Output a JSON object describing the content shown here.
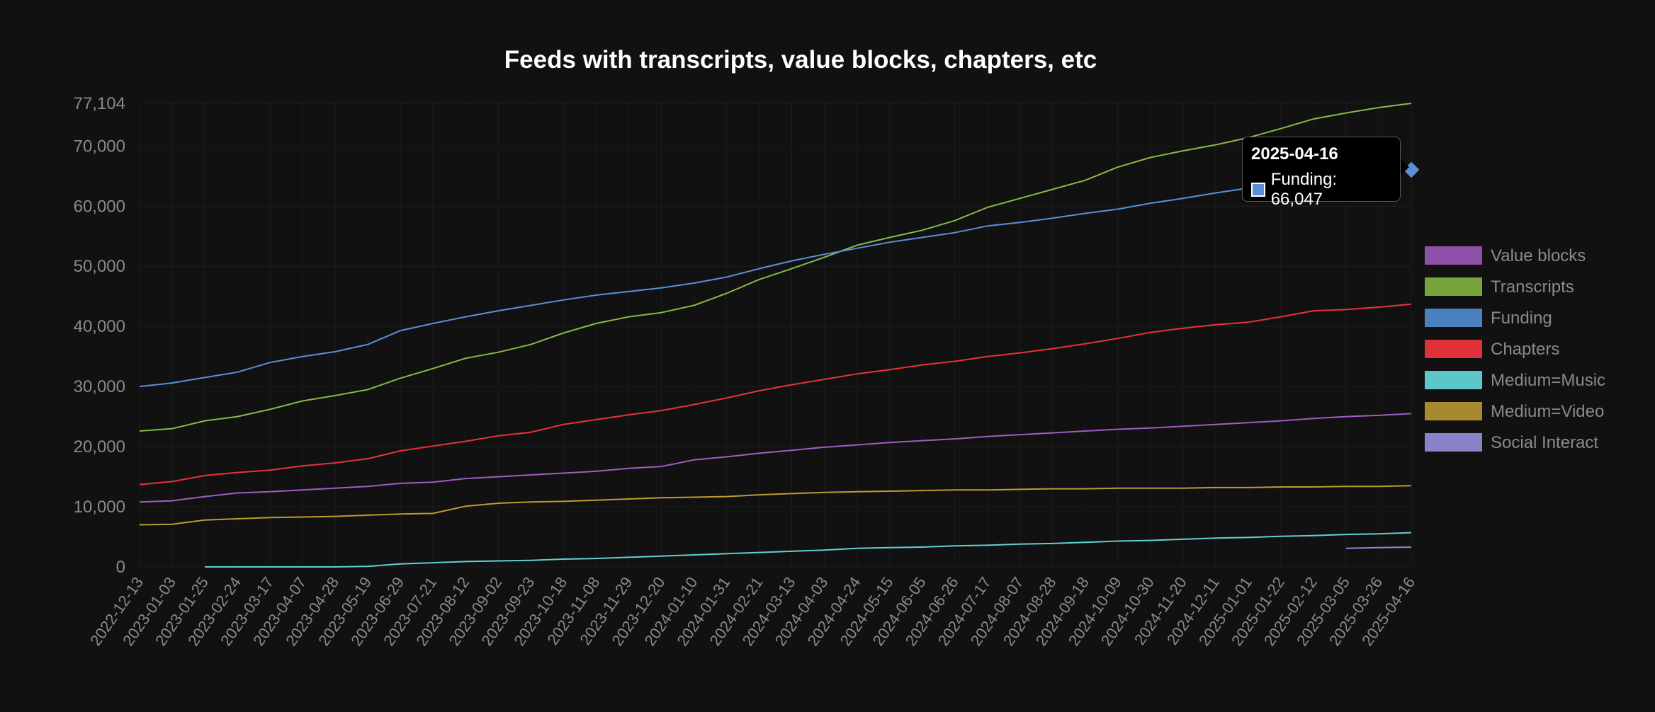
{
  "chart_data": {
    "type": "line",
    "title": "Feeds with transcripts, value blocks, chapters, etc",
    "xlabel": "",
    "ylabel": "",
    "ylim": [
      0,
      77104
    ],
    "y_ticks": [
      "0",
      "10,000",
      "20,000",
      "30,000",
      "40,000",
      "50,000",
      "60,000",
      "70,000",
      "77,104"
    ],
    "y_tick_values": [
      0,
      10000,
      20000,
      30000,
      40000,
      50000,
      60000,
      70000,
      77104
    ],
    "x": [
      "2022-12-13",
      "2023-01-03",
      "2023-01-25",
      "2023-02-24",
      "2023-03-17",
      "2023-04-07",
      "2023-04-28",
      "2023-05-19",
      "2023-06-29",
      "2023-07-21",
      "2023-08-12",
      "2023-09-02",
      "2023-09-23",
      "2023-10-18",
      "2023-11-08",
      "2023-11-29",
      "2023-12-20",
      "2024-01-10",
      "2024-01-31",
      "2024-02-21",
      "2024-03-13",
      "2024-04-03",
      "2024-04-24",
      "2024-05-15",
      "2024-06-05",
      "2024-06-26",
      "2024-07-17",
      "2024-08-07",
      "2024-08-28",
      "2024-09-18",
      "2024-10-09",
      "2024-10-30",
      "2024-11-20",
      "2024-12-11",
      "2025-01-01",
      "2025-01-22",
      "2025-02-12",
      "2025-03-05",
      "2025-03-26",
      "2025-04-16"
    ],
    "legend_position": "right",
    "grid": true,
    "series": [
      {
        "name": "Value blocks",
        "color": "#a05cc0",
        "legend_color": "#8e4fa8",
        "values": [
          10800,
          11000,
          11700,
          12300,
          12500,
          12800,
          13100,
          13400,
          13900,
          14100,
          14700,
          15000,
          15300,
          15600,
          15900,
          16400,
          16700,
          17800,
          18300,
          18900,
          19400,
          19900,
          20300,
          20700,
          21000,
          21300,
          21700,
          22000,
          22300,
          22600,
          22900,
          23100,
          23400,
          23700,
          24000,
          24300,
          24700,
          25000,
          25200,
          25500
        ]
      },
      {
        "name": "Transcripts",
        "color": "#86b84a",
        "legend_color": "#76a33a",
        "values": [
          22600,
          23000,
          24300,
          25000,
          26200,
          27600,
          28500,
          29500,
          31400,
          33000,
          34700,
          35700,
          37000,
          38900,
          40500,
          41600,
          42300,
          43500,
          45500,
          47800,
          49600,
          51500,
          53500,
          54800,
          56000,
          57600,
          59800,
          61300,
          62800,
          64300,
          66500,
          68100,
          69200,
          70200,
          71400,
          72900,
          74500,
          75500,
          76400,
          77104
        ]
      },
      {
        "name": "Funding",
        "color": "#5a8fd6",
        "legend_color": "#4a7fc0",
        "values": [
          30000,
          30600,
          31500,
          32400,
          34000,
          35000,
          35800,
          37000,
          39300,
          40500,
          41600,
          42600,
          43500,
          44400,
          45200,
          45800,
          46400,
          47200,
          48200,
          49600,
          50900,
          52000,
          53000,
          54000,
          54800,
          55600,
          56700,
          57300,
          58000,
          58800,
          59500,
          60500,
          61300,
          62200,
          63000,
          63700,
          64500,
          65200,
          65600,
          66047
        ]
      },
      {
        "name": "Chapters",
        "color": "#e8333c",
        "legend_color": "#e0303a",
        "values": [
          13700,
          14200,
          15200,
          15700,
          16100,
          16800,
          17300,
          18000,
          19300,
          20100,
          20900,
          21800,
          22400,
          23700,
          24500,
          25300,
          26000,
          27000,
          28100,
          29300,
          30300,
          31200,
          32100,
          32800,
          33600,
          34200,
          35000,
          35600,
          36300,
          37100,
          38000,
          39000,
          39700,
          40300,
          40700,
          41600,
          42600,
          42800,
          43200,
          43700
        ]
      },
      {
        "name": "Medium=Music",
        "color": "#62cfd0",
        "legend_color": "#5cc7c8",
        "values": [
          null,
          null,
          0,
          0,
          0,
          0,
          0,
          100,
          500,
          700,
          900,
          1000,
          1100,
          1300,
          1400,
          1600,
          1800,
          2000,
          2200,
          2400,
          2600,
          2800,
          3100,
          3200,
          3300,
          3500,
          3600,
          3800,
          3900,
          4100,
          4300,
          4400,
          4600,
          4800,
          4900,
          5100,
          5200,
          5400,
          5500,
          5700
        ]
      },
      {
        "name": "Medium=Video",
        "color": "#bf9a30",
        "legend_color": "#a88a2e",
        "values": [
          7000,
          7100,
          7800,
          8000,
          8200,
          8300,
          8400,
          8600,
          8800,
          8900,
          10100,
          10600,
          10800,
          10900,
          11100,
          11300,
          11500,
          11600,
          11700,
          12000,
          12200,
          12400,
          12500,
          12600,
          12700,
          12800,
          12800,
          12900,
          13000,
          13000,
          13100,
          13100,
          13100,
          13200,
          13200,
          13300,
          13300,
          13400,
          13400,
          13500
        ]
      },
      {
        "name": "Social Interact",
        "color": "#8c86d6",
        "legend_color": "#8883c9",
        "values": [
          null,
          null,
          null,
          null,
          null,
          null,
          null,
          null,
          null,
          null,
          null,
          null,
          null,
          null,
          null,
          null,
          null,
          null,
          null,
          null,
          null,
          null,
          null,
          null,
          null,
          null,
          null,
          null,
          null,
          null,
          null,
          null,
          null,
          null,
          null,
          null,
          null,
          3100,
          3200,
          3300
        ]
      }
    ],
    "tooltip": {
      "title": "2025-04-16",
      "label": "Funding: 66,047",
      "series": "Funding",
      "color": "#5a8fd6",
      "x": "2025-04-16",
      "value": 66047
    }
  }
}
